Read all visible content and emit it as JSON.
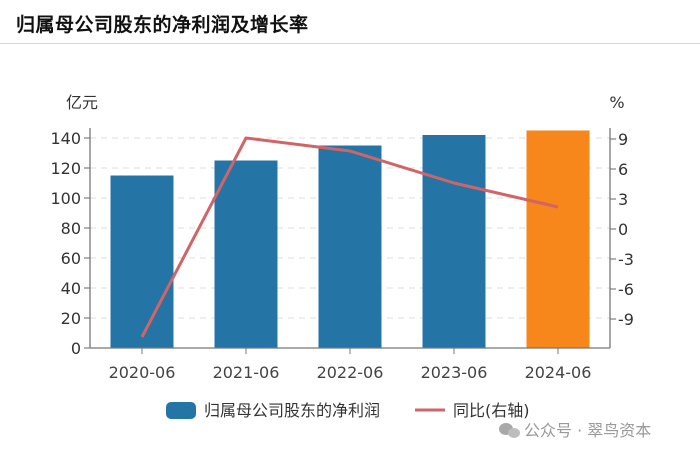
{
  "header": {
    "title": "归属母公司股东的净利润及增长率"
  },
  "chart_data": {
    "type": "bar",
    "title": "归属母公司股东的净利润及增长率",
    "categories": [
      "2020-06",
      "2021-06",
      "2022-06",
      "2023-06",
      "2024-06"
    ],
    "series": [
      {
        "name": "归属母公司股东的净利润",
        "kind": "bar",
        "axis": "left",
        "values": [
          115,
          125,
          135,
          142,
          145
        ],
        "colors": [
          "#2474a6",
          "#2474a6",
          "#2474a6",
          "#2474a6",
          "#f7861b"
        ]
      },
      {
        "name": "同比(右轴)",
        "kind": "line",
        "axis": "right",
        "values": [
          -10.8,
          9.1,
          7.8,
          4.6,
          2.2
        ],
        "color": "#d16467"
      }
    ],
    "ylabel": "亿元",
    "ylim": [
      0,
      140
    ],
    "yticks": [
      0,
      20,
      40,
      60,
      80,
      100,
      120,
      140
    ],
    "y2label": "%",
    "y2lim": [
      -12,
      9
    ],
    "y2ticks": [
      9,
      6,
      3,
      0,
      -3,
      -6,
      -9
    ],
    "grid": true,
    "legend_position": "bottom-center",
    "legend": [
      "归属母公司股东的净利润",
      "同比(右轴)"
    ]
  },
  "watermark": {
    "text": "公众号 · 翠鸟资本"
  }
}
